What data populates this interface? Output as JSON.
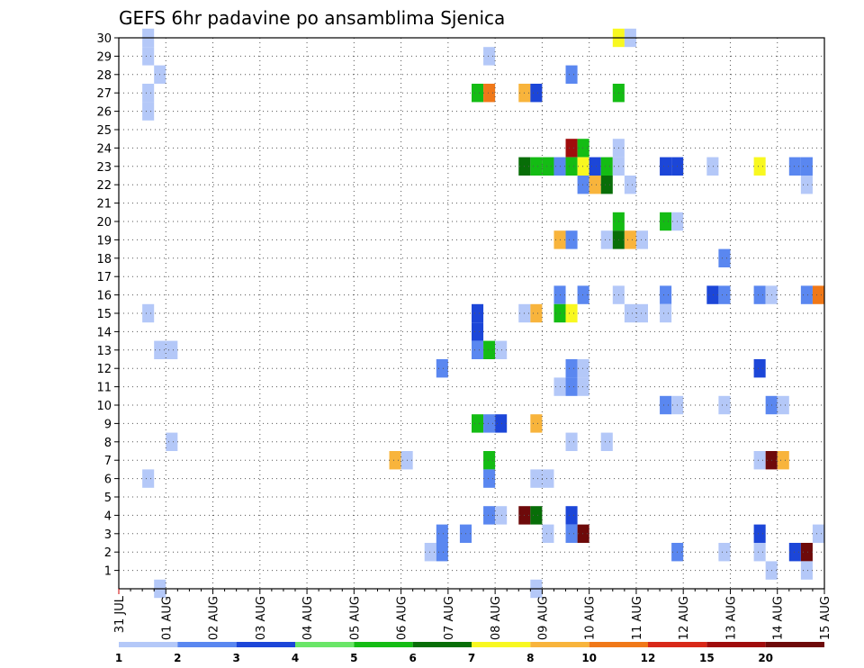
{
  "chart_data": {
    "type": "heatmap",
    "title": "GEFS 6hr padavine po ansamblima Sjenica",
    "xlabel": "",
    "ylabel": "",
    "x_ticks": [
      "31 JUL",
      "01 AUG",
      "02 AUG",
      "03 AUG",
      "04 AUG",
      "05 AUG",
      "06 AUG",
      "07 AUG",
      "08 AUG",
      "09 AUG",
      "10 AUG",
      "11 AUG",
      "12 AUG",
      "13 AUG",
      "14 AUG",
      "15 AUG"
    ],
    "y_ticks": [
      "1",
      "2",
      "3",
      "4",
      "5",
      "6",
      "7",
      "8",
      "9",
      "10",
      "11",
      "12",
      "13",
      "14",
      "15",
      "16",
      "17",
      "18",
      "19",
      "20",
      "21",
      "22",
      "23",
      "24",
      "25",
      "26",
      "27",
      "28",
      "29",
      "30"
    ],
    "ylim": [
      0,
      30
    ],
    "grid": true,
    "legend_placement": "bottom",
    "legend": {
      "labels": [
        "1",
        "2",
        "3",
        "4",
        "5",
        "6",
        "7",
        "8",
        "10",
        "12",
        "15",
        "20"
      ],
      "colors": [
        "#b4c8f8",
        "#5a87f0",
        "#1c46d8",
        "#6ae668",
        "#14bc14",
        "#086e08",
        "#f8f820",
        "#f8b43c",
        "#f07818",
        "#d82818",
        "#a00c0c",
        "#6e0a0a"
      ]
    },
    "cells": [
      [
        0.5,
        30,
        1
      ],
      [
        0.5,
        29,
        1
      ],
      [
        0.5,
        27,
        1
      ],
      [
        0.5,
        26,
        1
      ],
      [
        0.5,
        15,
        1
      ],
      [
        0.5,
        6,
        1
      ],
      [
        0.75,
        28,
        1
      ],
      [
        0.75,
        13,
        1
      ],
      [
        0.75,
        0,
        1
      ],
      [
        1,
        13,
        1
      ],
      [
        1,
        8,
        1
      ],
      [
        5.75,
        7,
        8
      ],
      [
        6,
        7,
        1
      ],
      [
        6.5,
        2,
        1
      ],
      [
        6.75,
        3,
        2
      ],
      [
        6.75,
        2,
        2
      ],
      [
        6.75,
        12,
        2
      ],
      [
        7.25,
        3,
        2
      ],
      [
        7.5,
        27,
        5
      ],
      [
        7.75,
        27,
        10
      ],
      [
        7.5,
        15,
        3
      ],
      [
        7.5,
        14,
        3
      ],
      [
        7.5,
        13,
        2
      ],
      [
        7.75,
        13,
        5
      ],
      [
        8,
        13,
        1
      ],
      [
        7.5,
        9,
        5
      ],
      [
        7.75,
        9,
        2
      ],
      [
        8,
        9,
        3
      ],
      [
        7.75,
        29,
        1
      ],
      [
        7.75,
        7,
        5
      ],
      [
        7.75,
        6,
        2
      ],
      [
        7.75,
        4,
        2
      ],
      [
        8,
        4,
        1
      ],
      [
        8.5,
        27,
        8
      ],
      [
        8.75,
        27,
        3
      ],
      [
        8.5,
        23,
        6
      ],
      [
        8.75,
        23,
        5
      ],
      [
        9,
        23,
        5
      ],
      [
        9.25,
        23,
        2
      ],
      [
        8.5,
        15,
        1
      ],
      [
        8.75,
        15,
        8
      ],
      [
        8.75,
        9,
        8
      ],
      [
        8.75,
        6,
        1
      ],
      [
        9,
        6,
        1
      ],
      [
        8.5,
        4,
        20
      ],
      [
        8.75,
        4,
        6
      ],
      [
        9,
        3,
        1
      ],
      [
        8.75,
        0,
        1
      ],
      [
        9.5,
        28,
        2
      ],
      [
        9.5,
        24,
        15
      ],
      [
        9.75,
        24,
        5
      ],
      [
        9.5,
        23,
        5
      ],
      [
        9.75,
        23,
        7
      ],
      [
        10,
        23,
        3
      ],
      [
        10.25,
        23,
        5
      ],
      [
        10.5,
        23,
        1
      ],
      [
        9.75,
        22,
        2
      ],
      [
        10,
        22,
        8
      ],
      [
        10.25,
        22,
        6
      ],
      [
        10.75,
        22,
        1
      ],
      [
        9.25,
        19,
        8
      ],
      [
        9.5,
        19,
        2
      ],
      [
        9.25,
        16,
        2
      ],
      [
        9.75,
        16,
        2
      ],
      [
        9.25,
        15,
        5
      ],
      [
        9.5,
        15,
        7
      ],
      [
        9.5,
        12,
        2
      ],
      [
        9.5,
        11,
        2
      ],
      [
        9.75,
        11,
        1
      ],
      [
        9.25,
        11,
        1
      ],
      [
        9.75,
        12,
        1
      ],
      [
        9.5,
        8,
        1
      ],
      [
        10.25,
        8,
        1
      ],
      [
        9.5,
        4,
        3
      ],
      [
        9.5,
        3,
        2
      ],
      [
        9.75,
        3,
        25
      ],
      [
        10.5,
        30,
        7
      ],
      [
        10.75,
        30,
        1
      ],
      [
        10.5,
        27,
        5
      ],
      [
        10.5,
        24,
        1
      ],
      [
        10.5,
        20,
        5
      ],
      [
        10.25,
        19,
        1
      ],
      [
        10.5,
        19,
        6
      ],
      [
        10.75,
        19,
        8
      ],
      [
        11,
        19,
        1
      ],
      [
        10.5,
        16,
        1
      ],
      [
        10.75,
        15,
        1
      ],
      [
        11,
        15,
        1
      ],
      [
        11.5,
        23,
        3
      ],
      [
        11.75,
        23,
        3
      ],
      [
        11.5,
        20,
        5
      ],
      [
        11.75,
        20,
        1
      ],
      [
        11.5,
        16,
        2
      ],
      [
        11.5,
        15,
        1
      ],
      [
        11.5,
        10,
        2
      ],
      [
        11.75,
        10,
        1
      ],
      [
        11.75,
        2,
        2
      ],
      [
        12.5,
        23,
        1
      ],
      [
        12.75,
        18,
        2
      ],
      [
        12.5,
        16,
        3
      ],
      [
        12.75,
        16,
        2
      ],
      [
        12.75,
        10,
        1
      ],
      [
        12.75,
        2,
        1
      ],
      [
        13.5,
        23,
        7
      ],
      [
        13.5,
        16,
        2
      ],
      [
        13.75,
        16,
        1
      ],
      [
        13.5,
        12,
        3
      ],
      [
        13.75,
        10,
        2
      ],
      [
        14,
        10,
        1
      ],
      [
        13.5,
        7,
        1
      ],
      [
        13.75,
        7,
        20
      ],
      [
        14,
        7,
        8
      ],
      [
        13.5,
        3,
        3
      ],
      [
        13.5,
        2,
        1
      ],
      [
        13.75,
        1,
        1
      ],
      [
        14.25,
        23,
        2
      ],
      [
        14.5,
        23,
        2
      ],
      [
        14.5,
        22,
        1
      ],
      [
        14.5,
        16,
        2
      ],
      [
        14.75,
        16,
        10
      ],
      [
        14.25,
        2,
        3
      ],
      [
        14.5,
        2,
        25
      ],
      [
        14.5,
        1,
        1
      ],
      [
        14.75,
        3,
        1
      ]
    ]
  }
}
